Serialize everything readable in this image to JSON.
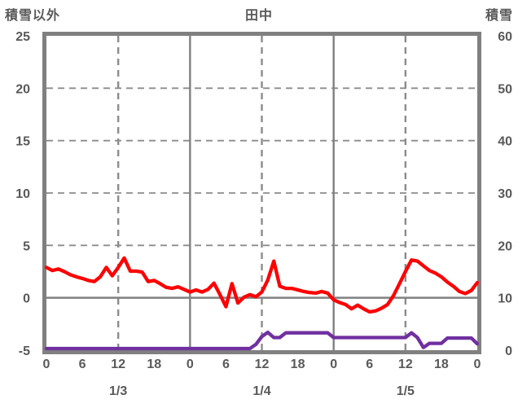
{
  "header": {
    "left_axis_title": "積雪以外",
    "chart_title": "田中",
    "right_axis_title": "積雪"
  },
  "chart_data": {
    "type": "line",
    "title": "田中",
    "legend": "none",
    "colors": {
      "text": "#595959",
      "frame": "#808080",
      "grid_dashed": "#8c8c8c",
      "zero_line": "#808080",
      "red_series": "#fe0000",
      "purple_series": "#7030a0",
      "background": "#ffffff"
    },
    "left_axis": {
      "title": "積雪以外",
      "min": -5,
      "max": 25,
      "step": 5,
      "tick_labels": [
        "25",
        "20",
        "15",
        "10",
        "5",
        "0",
        "-5"
      ]
    },
    "right_axis": {
      "title": "積雪",
      "min": 0,
      "max": 60,
      "step": 10,
      "tick_labels": [
        "60",
        "50",
        "40",
        "30",
        "20",
        "10",
        "0"
      ]
    },
    "x_axis": {
      "unit": "hours",
      "min": 0,
      "max": 72,
      "step_hours": 1,
      "tick_interval_hours": 6,
      "tick_labels": [
        "0",
        "6",
        "12",
        "18",
        "0",
        "6",
        "12",
        "18",
        "0",
        "6",
        "12",
        "18",
        "0"
      ],
      "day_labels": [
        {
          "label": "1/3",
          "hour": 12
        },
        {
          "label": "1/4",
          "hour": 36
        },
        {
          "label": "1/5",
          "hour": 60
        }
      ]
    },
    "gridlines": {
      "horizontal_dashed_left_values": [
        20,
        15,
        10,
        5
      ],
      "horizontal_solid_left_values": [
        0
      ],
      "vertical_dashed_hours": [
        12,
        36,
        60
      ],
      "vertical_solid_hours": [
        24,
        48
      ]
    },
    "series": [
      {
        "id": "red-line",
        "axis": "left",
        "color": "#fe0000",
        "values": [
          2.9,
          2.6,
          2.75,
          2.5,
          2.2,
          2.0,
          1.85,
          1.65,
          1.55,
          2.0,
          2.9,
          2.1,
          2.9,
          3.8,
          2.55,
          2.55,
          2.45,
          1.55,
          1.65,
          1.35,
          1.0,
          0.9,
          1.05,
          0.8,
          0.55,
          0.75,
          0.55,
          0.8,
          1.4,
          0.3,
          -0.85,
          1.35,
          -0.5,
          0.05,
          0.3,
          0.1,
          0.55,
          1.7,
          3.5,
          1.1,
          0.9,
          0.9,
          0.75,
          0.6,
          0.5,
          0.45,
          0.6,
          0.45,
          -0.2,
          -0.45,
          -0.65,
          -1.05,
          -0.7,
          -1.05,
          -1.35,
          -1.25,
          -1.0,
          -0.65,
          0.2,
          1.35,
          2.5,
          3.6,
          3.5,
          3.05,
          2.6,
          2.35,
          2.0,
          1.5,
          1.1,
          0.6,
          0.4,
          0.7,
          1.45
        ]
      },
      {
        "id": "purple-line",
        "axis": "right",
        "color": "#7030a0",
        "values": [
          0,
          0,
          0,
          0,
          0,
          0,
          0,
          0,
          0,
          0,
          0,
          0,
          0,
          0,
          0,
          0,
          0,
          0,
          0,
          0,
          0,
          0,
          0,
          0,
          0,
          0,
          0,
          0,
          0,
          0,
          0,
          0,
          0,
          0,
          0,
          0.8,
          2.3,
          3.1,
          2.1,
          2.1,
          3.0,
          3.0,
          3.0,
          3.0,
          3.0,
          3.0,
          3.0,
          3.0,
          2.1,
          2.1,
          2.1,
          2.1,
          2.1,
          2.1,
          2.1,
          2.1,
          2.1,
          2.1,
          2.1,
          2.1,
          2.1,
          3.0,
          2.1,
          0.2,
          1.0,
          1.0,
          1.0,
          2.0,
          2.0,
          2.0,
          2.0,
          2.0,
          0.9
        ]
      }
    ]
  }
}
